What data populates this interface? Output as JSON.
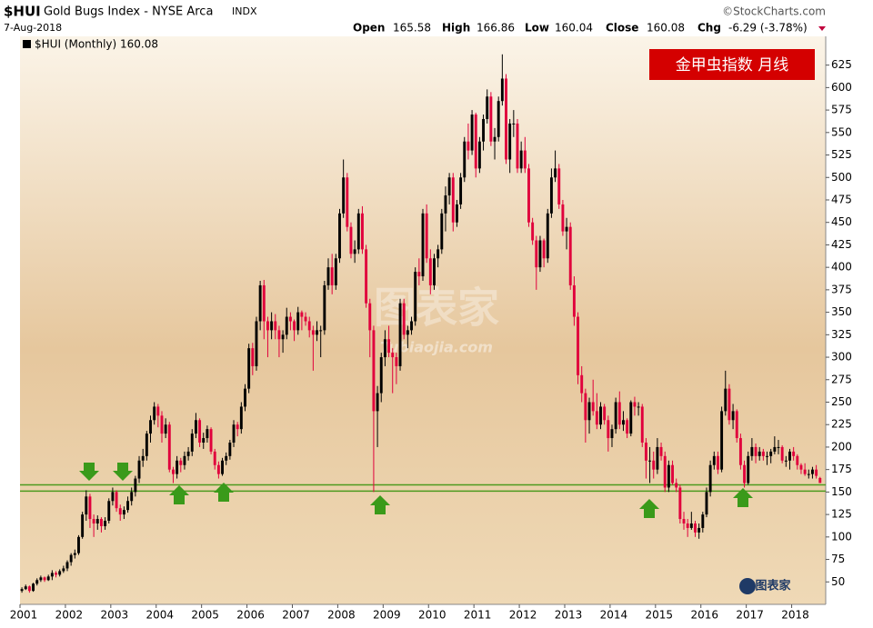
{
  "header": {
    "symbol": "$HUI",
    "name": "Gold Bugs Index - NYSE Arca",
    "exchange": "INDX",
    "date": "7-Aug-2018",
    "source": "©StockCharts.com",
    "open_label": "Open",
    "open": "165.58",
    "high_label": "High",
    "high": "166.86",
    "low_label": "Low",
    "low": "160.04",
    "close_label": "Close",
    "close": "160.08",
    "chg_label": "Chg",
    "chg": "-6.29 (-3.78%)"
  },
  "watermark": {
    "text": "图表家",
    "url": "Tubiaojia.com",
    "logo": "图表家"
  },
  "chart_data": {
    "type": "candlestick",
    "legend": "$HUI (Monthly) 160.08",
    "banner": "金甲虫指数  月线",
    "up_color": "#000000",
    "down_color": "#e0003c",
    "hline_color": "#4c9a1f",
    "hlines": [
      158,
      151
    ],
    "xlim": [
      0,
      213
    ],
    "ylim": [
      25,
      657
    ],
    "xticks": [
      {
        "value": 0,
        "label": "2001"
      },
      {
        "value": 12,
        "label": "2002"
      },
      {
        "value": 24,
        "label": "2003"
      },
      {
        "value": 36,
        "label": "2004"
      },
      {
        "value": 48,
        "label": "2005"
      },
      {
        "value": 60,
        "label": "2006"
      },
      {
        "value": 72,
        "label": "2007"
      },
      {
        "value": 84,
        "label": "2008"
      },
      {
        "value": 96,
        "label": "2009"
      },
      {
        "value": 108,
        "label": "2010"
      },
      {
        "value": 120,
        "label": "2011"
      },
      {
        "value": 132,
        "label": "2012"
      },
      {
        "value": 144,
        "label": "2013"
      },
      {
        "value": 156,
        "label": "2014"
      },
      {
        "value": 168,
        "label": "2015"
      },
      {
        "value": 180,
        "label": "2016"
      },
      {
        "value": 192,
        "label": "2017"
      },
      {
        "value": 204,
        "label": "2018"
      }
    ],
    "yticks": [
      50,
      75,
      100,
      125,
      150,
      175,
      200,
      225,
      250,
      275,
      300,
      325,
      350,
      375,
      400,
      425,
      450,
      475,
      500,
      525,
      550,
      575,
      600,
      625
    ],
    "candles": [
      [
        40,
        44,
        38,
        42
      ],
      [
        42,
        47,
        41,
        45
      ],
      [
        45,
        46,
        38,
        40
      ],
      [
        40,
        49,
        39,
        48
      ],
      [
        48,
        54,
        46,
        52
      ],
      [
        52,
        57,
        50,
        55
      ],
      [
        55,
        56,
        50,
        52
      ],
      [
        52,
        58,
        51,
        56
      ],
      [
        56,
        63,
        52,
        60
      ],
      [
        60,
        62,
        55,
        58
      ],
      [
        58,
        64,
        56,
        62
      ],
      [
        62,
        68,
        60,
        65
      ],
      [
        65,
        74,
        62,
        72
      ],
      [
        72,
        82,
        68,
        80
      ],
      [
        80,
        86,
        76,
        82
      ],
      [
        82,
        102,
        80,
        100
      ],
      [
        100,
        128,
        98,
        125
      ],
      [
        125,
        152,
        118,
        145
      ],
      [
        145,
        148,
        110,
        120
      ],
      [
        120,
        125,
        100,
        115
      ],
      [
        115,
        124,
        108,
        120
      ],
      [
        120,
        122,
        105,
        112
      ],
      [
        112,
        122,
        108,
        118
      ],
      [
        118,
        143,
        115,
        140
      ],
      [
        140,
        155,
        135,
        150
      ],
      [
        150,
        152,
        128,
        132
      ],
      [
        132,
        136,
        118,
        125
      ],
      [
        125,
        134,
        120,
        130
      ],
      [
        130,
        145,
        127,
        140
      ],
      [
        140,
        155,
        135,
        150
      ],
      [
        150,
        168,
        145,
        165
      ],
      [
        165,
        190,
        160,
        185
      ],
      [
        185,
        198,
        178,
        190
      ],
      [
        190,
        218,
        185,
        215
      ],
      [
        215,
        235,
        205,
        230
      ],
      [
        230,
        250,
        225,
        245
      ],
      [
        245,
        248,
        222,
        235
      ],
      [
        235,
        240,
        205,
        215
      ],
      [
        215,
        232,
        210,
        225
      ],
      [
        225,
        228,
        172,
        175
      ],
      [
        175,
        178,
        160,
        170
      ],
      [
        170,
        190,
        165,
        185
      ],
      [
        185,
        188,
        172,
        180
      ],
      [
        180,
        195,
        175,
        190
      ],
      [
        190,
        200,
        185,
        195
      ],
      [
        195,
        220,
        190,
        215
      ],
      [
        215,
        238,
        210,
        230
      ],
      [
        230,
        232,
        200,
        205
      ],
      [
        205,
        216,
        198,
        210
      ],
      [
        210,
        224,
        205,
        220
      ],
      [
        220,
        222,
        192,
        195
      ],
      [
        195,
        198,
        175,
        180
      ],
      [
        180,
        184,
        165,
        170
      ],
      [
        170,
        188,
        168,
        185
      ],
      [
        185,
        194,
        180,
        190
      ],
      [
        190,
        208,
        186,
        205
      ],
      [
        205,
        230,
        200,
        225
      ],
      [
        225,
        228,
        212,
        220
      ],
      [
        220,
        250,
        215,
        245
      ],
      [
        245,
        270,
        240,
        265
      ],
      [
        265,
        315,
        260,
        310
      ],
      [
        310,
        316,
        280,
        290
      ],
      [
        290,
        345,
        285,
        340
      ],
      [
        340,
        385,
        330,
        380
      ],
      [
        380,
        386,
        320,
        340
      ],
      [
        340,
        345,
        300,
        330
      ],
      [
        330,
        350,
        320,
        340
      ],
      [
        340,
        348,
        320,
        330
      ],
      [
        330,
        335,
        300,
        320
      ],
      [
        320,
        330,
        305,
        325
      ],
      [
        325,
        355,
        320,
        345
      ],
      [
        345,
        350,
        330,
        340
      ],
      [
        340,
        342,
        318,
        330
      ],
      [
        330,
        356,
        325,
        350
      ],
      [
        350,
        352,
        330,
        345
      ],
      [
        345,
        350,
        335,
        340
      ],
      [
        340,
        345,
        322,
        330
      ],
      [
        330,
        335,
        285,
        325
      ],
      [
        325,
        340,
        318,
        330
      ],
      [
        330,
        335,
        300,
        330
      ],
      [
        330,
        385,
        325,
        380
      ],
      [
        380,
        410,
        375,
        400
      ],
      [
        400,
        415,
        370,
        380
      ],
      [
        380,
        415,
        375,
        410
      ],
      [
        410,
        465,
        405,
        460
      ],
      [
        460,
        520,
        455,
        500
      ],
      [
        500,
        505,
        440,
        445
      ],
      [
        445,
        450,
        410,
        415
      ],
      [
        415,
        430,
        405,
        420
      ],
      [
        420,
        465,
        415,
        460
      ],
      [
        460,
        468,
        415,
        420
      ],
      [
        420,
        425,
        355,
        360
      ],
      [
        360,
        365,
        300,
        330
      ],
      [
        330,
        335,
        150,
        240
      ],
      [
        240,
        268,
        200,
        260
      ],
      [
        260,
        305,
        250,
        300
      ],
      [
        300,
        330,
        290,
        320
      ],
      [
        320,
        335,
        300,
        305
      ],
      [
        305,
        310,
        260,
        300
      ],
      [
        300,
        305,
        270,
        290
      ],
      [
        290,
        365,
        285,
        360
      ],
      [
        360,
        365,
        320,
        325
      ],
      [
        325,
        335,
        310,
        330
      ],
      [
        330,
        345,
        325,
        340
      ],
      [
        340,
        400,
        335,
        395
      ],
      [
        395,
        410,
        380,
        390
      ],
      [
        390,
        465,
        385,
        460
      ],
      [
        460,
        470,
        405,
        410
      ],
      [
        410,
        420,
        370,
        380
      ],
      [
        380,
        415,
        375,
        410
      ],
      [
        410,
        425,
        400,
        420
      ],
      [
        420,
        465,
        415,
        460
      ],
      [
        460,
        490,
        440,
        480
      ],
      [
        480,
        505,
        470,
        500
      ],
      [
        500,
        505,
        440,
        450
      ],
      [
        450,
        475,
        445,
        470
      ],
      [
        470,
        505,
        465,
        500
      ],
      [
        500,
        545,
        495,
        540
      ],
      [
        540,
        560,
        520,
        530
      ],
      [
        530,
        575,
        525,
        570
      ],
      [
        570,
        572,
        500,
        510
      ],
      [
        510,
        545,
        505,
        540
      ],
      [
        540,
        570,
        530,
        565
      ],
      [
        565,
        598,
        560,
        590
      ],
      [
        590,
        595,
        535,
        540
      ],
      [
        540,
        555,
        520,
        545
      ],
      [
        545,
        590,
        540,
        585
      ],
      [
        585,
        637,
        580,
        610
      ],
      [
        610,
        615,
        515,
        520
      ],
      [
        520,
        565,
        505,
        560
      ],
      [
        560,
        575,
        545,
        560
      ],
      [
        560,
        565,
        505,
        510
      ],
      [
        510,
        540,
        505,
        530
      ],
      [
        530,
        545,
        505,
        510
      ],
      [
        510,
        515,
        445,
        450
      ],
      [
        450,
        455,
        425,
        430
      ],
      [
        430,
        435,
        375,
        400
      ],
      [
        400,
        435,
        395,
        430
      ],
      [
        430,
        432,
        400,
        410
      ],
      [
        410,
        465,
        405,
        460
      ],
      [
        460,
        510,
        455,
        500
      ],
      [
        500,
        530,
        495,
        510
      ],
      [
        510,
        515,
        465,
        470
      ],
      [
        470,
        475,
        435,
        440
      ],
      [
        440,
        455,
        420,
        445
      ],
      [
        445,
        450,
        375,
        380
      ],
      [
        380,
        390,
        335,
        345
      ],
      [
        345,
        350,
        270,
        280
      ],
      [
        280,
        290,
        250,
        260
      ],
      [
        260,
        265,
        205,
        230
      ],
      [
        230,
        255,
        215,
        250
      ],
      [
        250,
        275,
        235,
        240
      ],
      [
        240,
        260,
        220,
        225
      ],
      [
        225,
        250,
        220,
        245
      ],
      [
        245,
        248,
        225,
        230
      ],
      [
        230,
        235,
        195,
        210
      ],
      [
        210,
        225,
        200,
        220
      ],
      [
        220,
        255,
        215,
        250
      ],
      [
        250,
        262,
        220,
        225
      ],
      [
        225,
        240,
        218,
        230
      ],
      [
        230,
        232,
        210,
        215
      ],
      [
        215,
        252,
        212,
        250
      ],
      [
        250,
        256,
        235,
        245
      ],
      [
        245,
        250,
        235,
        245
      ],
      [
        245,
        248,
        200,
        205
      ],
      [
        205,
        210,
        165,
        185
      ],
      [
        185,
        200,
        160,
        185
      ],
      [
        185,
        195,
        165,
        175
      ],
      [
        175,
        210,
        170,
        200
      ],
      [
        200,
        205,
        185,
        190
      ],
      [
        190,
        195,
        150,
        155
      ],
      [
        155,
        185,
        150,
        180
      ],
      [
        180,
        185,
        158,
        160
      ],
      [
        160,
        165,
        150,
        155
      ],
      [
        155,
        158,
        115,
        120
      ],
      [
        120,
        128,
        108,
        115
      ],
      [
        115,
        120,
        100,
        110
      ],
      [
        110,
        128,
        108,
        115
      ],
      [
        115,
        118,
        100,
        105
      ],
      [
        105,
        115,
        98,
        110
      ],
      [
        110,
        128,
        105,
        125
      ],
      [
        125,
        155,
        122,
        150
      ],
      [
        150,
        185,
        145,
        180
      ],
      [
        180,
        195,
        175,
        190
      ],
      [
        190,
        195,
        170,
        175
      ],
      [
        175,
        245,
        172,
        240
      ],
      [
        240,
        285,
        235,
        265
      ],
      [
        265,
        270,
        225,
        230
      ],
      [
        230,
        248,
        220,
        240
      ],
      [
        240,
        242,
        205,
        210
      ],
      [
        210,
        215,
        175,
        180
      ],
      [
        180,
        185,
        155,
        160
      ],
      [
        160,
        195,
        158,
        190
      ],
      [
        190,
        210,
        185,
        200
      ],
      [
        200,
        204,
        182,
        190
      ],
      [
        190,
        200,
        185,
        195
      ],
      [
        195,
        198,
        185,
        190
      ],
      [
        190,
        195,
        180,
        190
      ],
      [
        190,
        198,
        182,
        195
      ],
      [
        195,
        212,
        192,
        200
      ],
      [
        200,
        208,
        192,
        200
      ],
      [
        200,
        202,
        182,
        185
      ],
      [
        185,
        190,
        178,
        185
      ],
      [
        185,
        198,
        175,
        195
      ],
      [
        195,
        200,
        185,
        190
      ],
      [
        190,
        192,
        175,
        180
      ],
      [
        180,
        182,
        170,
        175
      ],
      [
        175,
        182,
        168,
        170
      ],
      [
        170,
        175,
        165,
        170
      ],
      [
        170,
        178,
        165,
        175
      ],
      [
        175,
        180,
        165,
        168
      ],
      [
        165.58,
        166.86,
        160.04,
        160.08
      ]
    ]
  }
}
